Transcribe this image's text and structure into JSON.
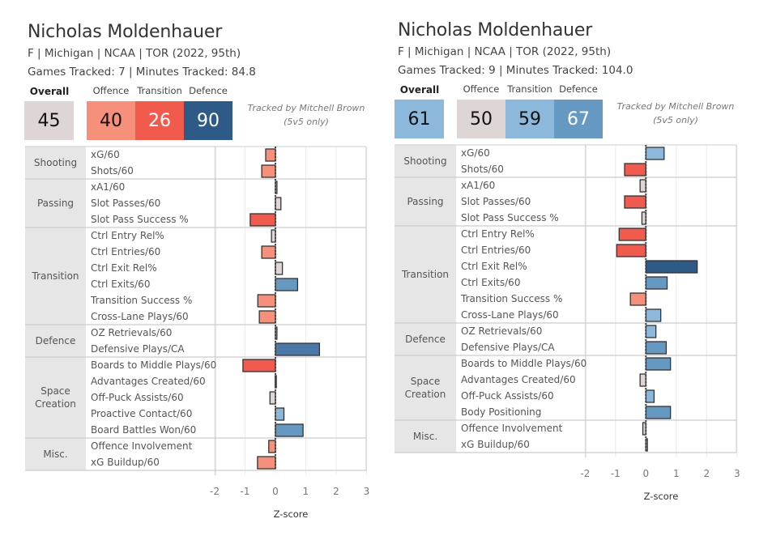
{
  "colors": {
    "very_low": "#F05B4E",
    "low": "#F7907A",
    "neutral": "#DED5D5",
    "high": "#8CB8DC",
    "higher": "#6699C2",
    "very_high": "#2E5A87",
    "group_bg": "#E6E6E6",
    "grid": "#CCCCCC",
    "bar_outline": "#333333"
  },
  "panels": [
    {
      "player_name": "Nicholas Moldenhauer",
      "bio_line": "F | Michigan | NCAA | TOR (2022, 95th)",
      "tracking_line": "Games Tracked: 7 | Minutes Tracked: 84.8",
      "overall": {
        "label": "Overall",
        "value": "45",
        "color": "#DED5D5",
        "text_color": "#111"
      },
      "components": [
        {
          "label": "Offence",
          "value": "40",
          "color": "#F7907A",
          "text_color": "#111"
        },
        {
          "label": "Transition",
          "value": "26",
          "color": "#F05B4E",
          "text_color": "#fff"
        },
        {
          "label": "Defence",
          "value": "90",
          "color": "#2E5A87",
          "text_color": "#fff"
        }
      ],
      "credit_line1": "Tracked by Mitchell Brown",
      "credit_line2": "(5v5 only)"
    },
    {
      "player_name": "Nicholas Moldenhauer",
      "bio_line": "F | Michigan | NCAA | TOR (2022, 95th)",
      "tracking_line": "Games Tracked: 9 | Minutes Tracked: 104.0",
      "overall": {
        "label": "Overall",
        "value": "61",
        "color": "#8CB8DC",
        "text_color": "#111"
      },
      "components": [
        {
          "label": "Offence",
          "value": "50",
          "color": "#DED5D5",
          "text_color": "#111"
        },
        {
          "label": "Transition",
          "value": "59",
          "color": "#8CB8DC",
          "text_color": "#111"
        },
        {
          "label": "Defence",
          "value": "67",
          "color": "#6699C2",
          "text_color": "#fff"
        }
      ],
      "credit_line1": "Tracked by Mitchell Brown",
      "credit_line2": "(5v5 only)"
    }
  ],
  "chart_data": [
    {
      "type": "bar",
      "orientation": "horizontal",
      "title": "Nicholas Moldenhauer — 7 games, 84.8 min",
      "xlabel": "Z-score",
      "ylabel": "",
      "xlim": [
        -2,
        3
      ],
      "xticks": [
        "-2",
        "-1",
        "0",
        "1",
        "2",
        "3"
      ],
      "grid": true,
      "groups": [
        {
          "name": "Shooting",
          "metrics": [
            {
              "label": "xG/60",
              "value": -0.32,
              "color": "#F7907A"
            },
            {
              "label": "Shots/60",
              "value": -0.45,
              "color": "#F7907A"
            }
          ]
        },
        {
          "name": "Passing",
          "metrics": [
            {
              "label": "xA1/60",
              "value": 0.05,
              "color": "#DED5D5"
            },
            {
              "label": "Slot Passes/60",
              "value": 0.18,
              "color": "#DED5D5"
            },
            {
              "label": "Slot Pass Success %",
              "value": -0.83,
              "color": "#F05B4E"
            }
          ]
        },
        {
          "name": "Transition",
          "metrics": [
            {
              "label": "Ctrl Entry Rel%",
              "value": -0.13,
              "color": "#DED5D5"
            },
            {
              "label": "Ctrl Entries/60",
              "value": -0.45,
              "color": "#F7907A"
            },
            {
              "label": "Ctrl Exit Rel%",
              "value": 0.23,
              "color": "#DED5D5"
            },
            {
              "label": "Ctrl Exits/60",
              "value": 0.73,
              "color": "#6699C2"
            },
            {
              "label": "Transition Success %",
              "value": -0.58,
              "color": "#F7907A"
            },
            {
              "label": "Cross-Lane Plays/60",
              "value": -0.53,
              "color": "#F7907A"
            }
          ]
        },
        {
          "name": "Defence",
          "metrics": [
            {
              "label": "OZ Retrievals/60",
              "value": 0.05,
              "color": "#DED5D5"
            },
            {
              "label": "Defensive Plays/CA",
              "value": 1.45,
              "color": "#4A78A8"
            }
          ]
        },
        {
          "name": "Space Creation",
          "metrics": [
            {
              "label": "Boards to Middle Plays/60",
              "value": -1.07,
              "color": "#F05B4E"
            },
            {
              "label": "Advantages Created/60",
              "value": -0.01,
              "color": "#DED5D5"
            },
            {
              "label": "Off-Puck Assists/60",
              "value": -0.18,
              "color": "#DED5D5"
            },
            {
              "label": "Proactive Contact/60",
              "value": 0.28,
              "color": "#8CB8DC"
            },
            {
              "label": "Board Battles Won/60",
              "value": 0.91,
              "color": "#6699C2"
            }
          ]
        },
        {
          "name": "Misc.",
          "metrics": [
            {
              "label": "Offence Involvement",
              "value": -0.22,
              "color": "#F7907A"
            },
            {
              "label": "xG Buildup/60",
              "value": -0.59,
              "color": "#F7907A"
            }
          ]
        }
      ]
    },
    {
      "type": "bar",
      "orientation": "horizontal",
      "title": "Nicholas Moldenhauer — 9 games, 104.0 min",
      "xlabel": "Z-score",
      "ylabel": "",
      "xlim": [
        -2,
        3
      ],
      "xticks": [
        "-2",
        "-1",
        "0",
        "1",
        "2",
        "3"
      ],
      "grid": true,
      "groups": [
        {
          "name": "Shooting",
          "metrics": [
            {
              "label": "xG/60",
              "value": 0.6,
              "color": "#8CB8DC"
            },
            {
              "label": "Shots/60",
              "value": -0.7,
              "color": "#F05B4E"
            }
          ]
        },
        {
          "name": "Passing",
          "metrics": [
            {
              "label": "xA1/60",
              "value": -0.19,
              "color": "#DED5D5"
            },
            {
              "label": "Slot Passes/60",
              "value": -0.7,
              "color": "#F05B4E"
            },
            {
              "label": "Slot Pass Success %",
              "value": -0.13,
              "color": "#DED5D5"
            }
          ]
        },
        {
          "name": "Transition",
          "metrics": [
            {
              "label": "Ctrl Entry Rel%",
              "value": -0.88,
              "color": "#F05B4E"
            },
            {
              "label": "Ctrl Entries/60",
              "value": -0.96,
              "color": "#F05B4E"
            },
            {
              "label": "Ctrl Exit Rel%",
              "value": 1.69,
              "color": "#2E5A87"
            },
            {
              "label": "Ctrl Exits/60",
              "value": 0.7,
              "color": "#6699C2"
            },
            {
              "label": "Transition Success %",
              "value": -0.51,
              "color": "#F7907A"
            },
            {
              "label": "Cross-Lane Plays/60",
              "value": 0.49,
              "color": "#8CB8DC"
            }
          ]
        },
        {
          "name": "Defence",
          "metrics": [
            {
              "label": "OZ Retrievals/60",
              "value": 0.33,
              "color": "#8CB8DC"
            },
            {
              "label": "Defensive Plays/CA",
              "value": 0.67,
              "color": "#6699C2"
            }
          ]
        },
        {
          "name": "Space Creation",
          "metrics": [
            {
              "label": "Boards to Middle Plays/60",
              "value": 0.81,
              "color": "#6699C2"
            },
            {
              "label": "Advantages Created/60",
              "value": -0.19,
              "color": "#DED5D5"
            },
            {
              "label": "Off-Puck Assists/60",
              "value": 0.27,
              "color": "#8CB8DC"
            },
            {
              "label": "Body Positioning",
              "value": 0.81,
              "color": "#6699C2"
            }
          ]
        },
        {
          "name": "Misc.",
          "metrics": [
            {
              "label": "Offence Involvement",
              "value": -0.1,
              "color": "#DED5D5"
            },
            {
              "label": "xG Buildup/60",
              "value": 0.05,
              "color": "#DED5D5"
            }
          ]
        }
      ]
    }
  ]
}
